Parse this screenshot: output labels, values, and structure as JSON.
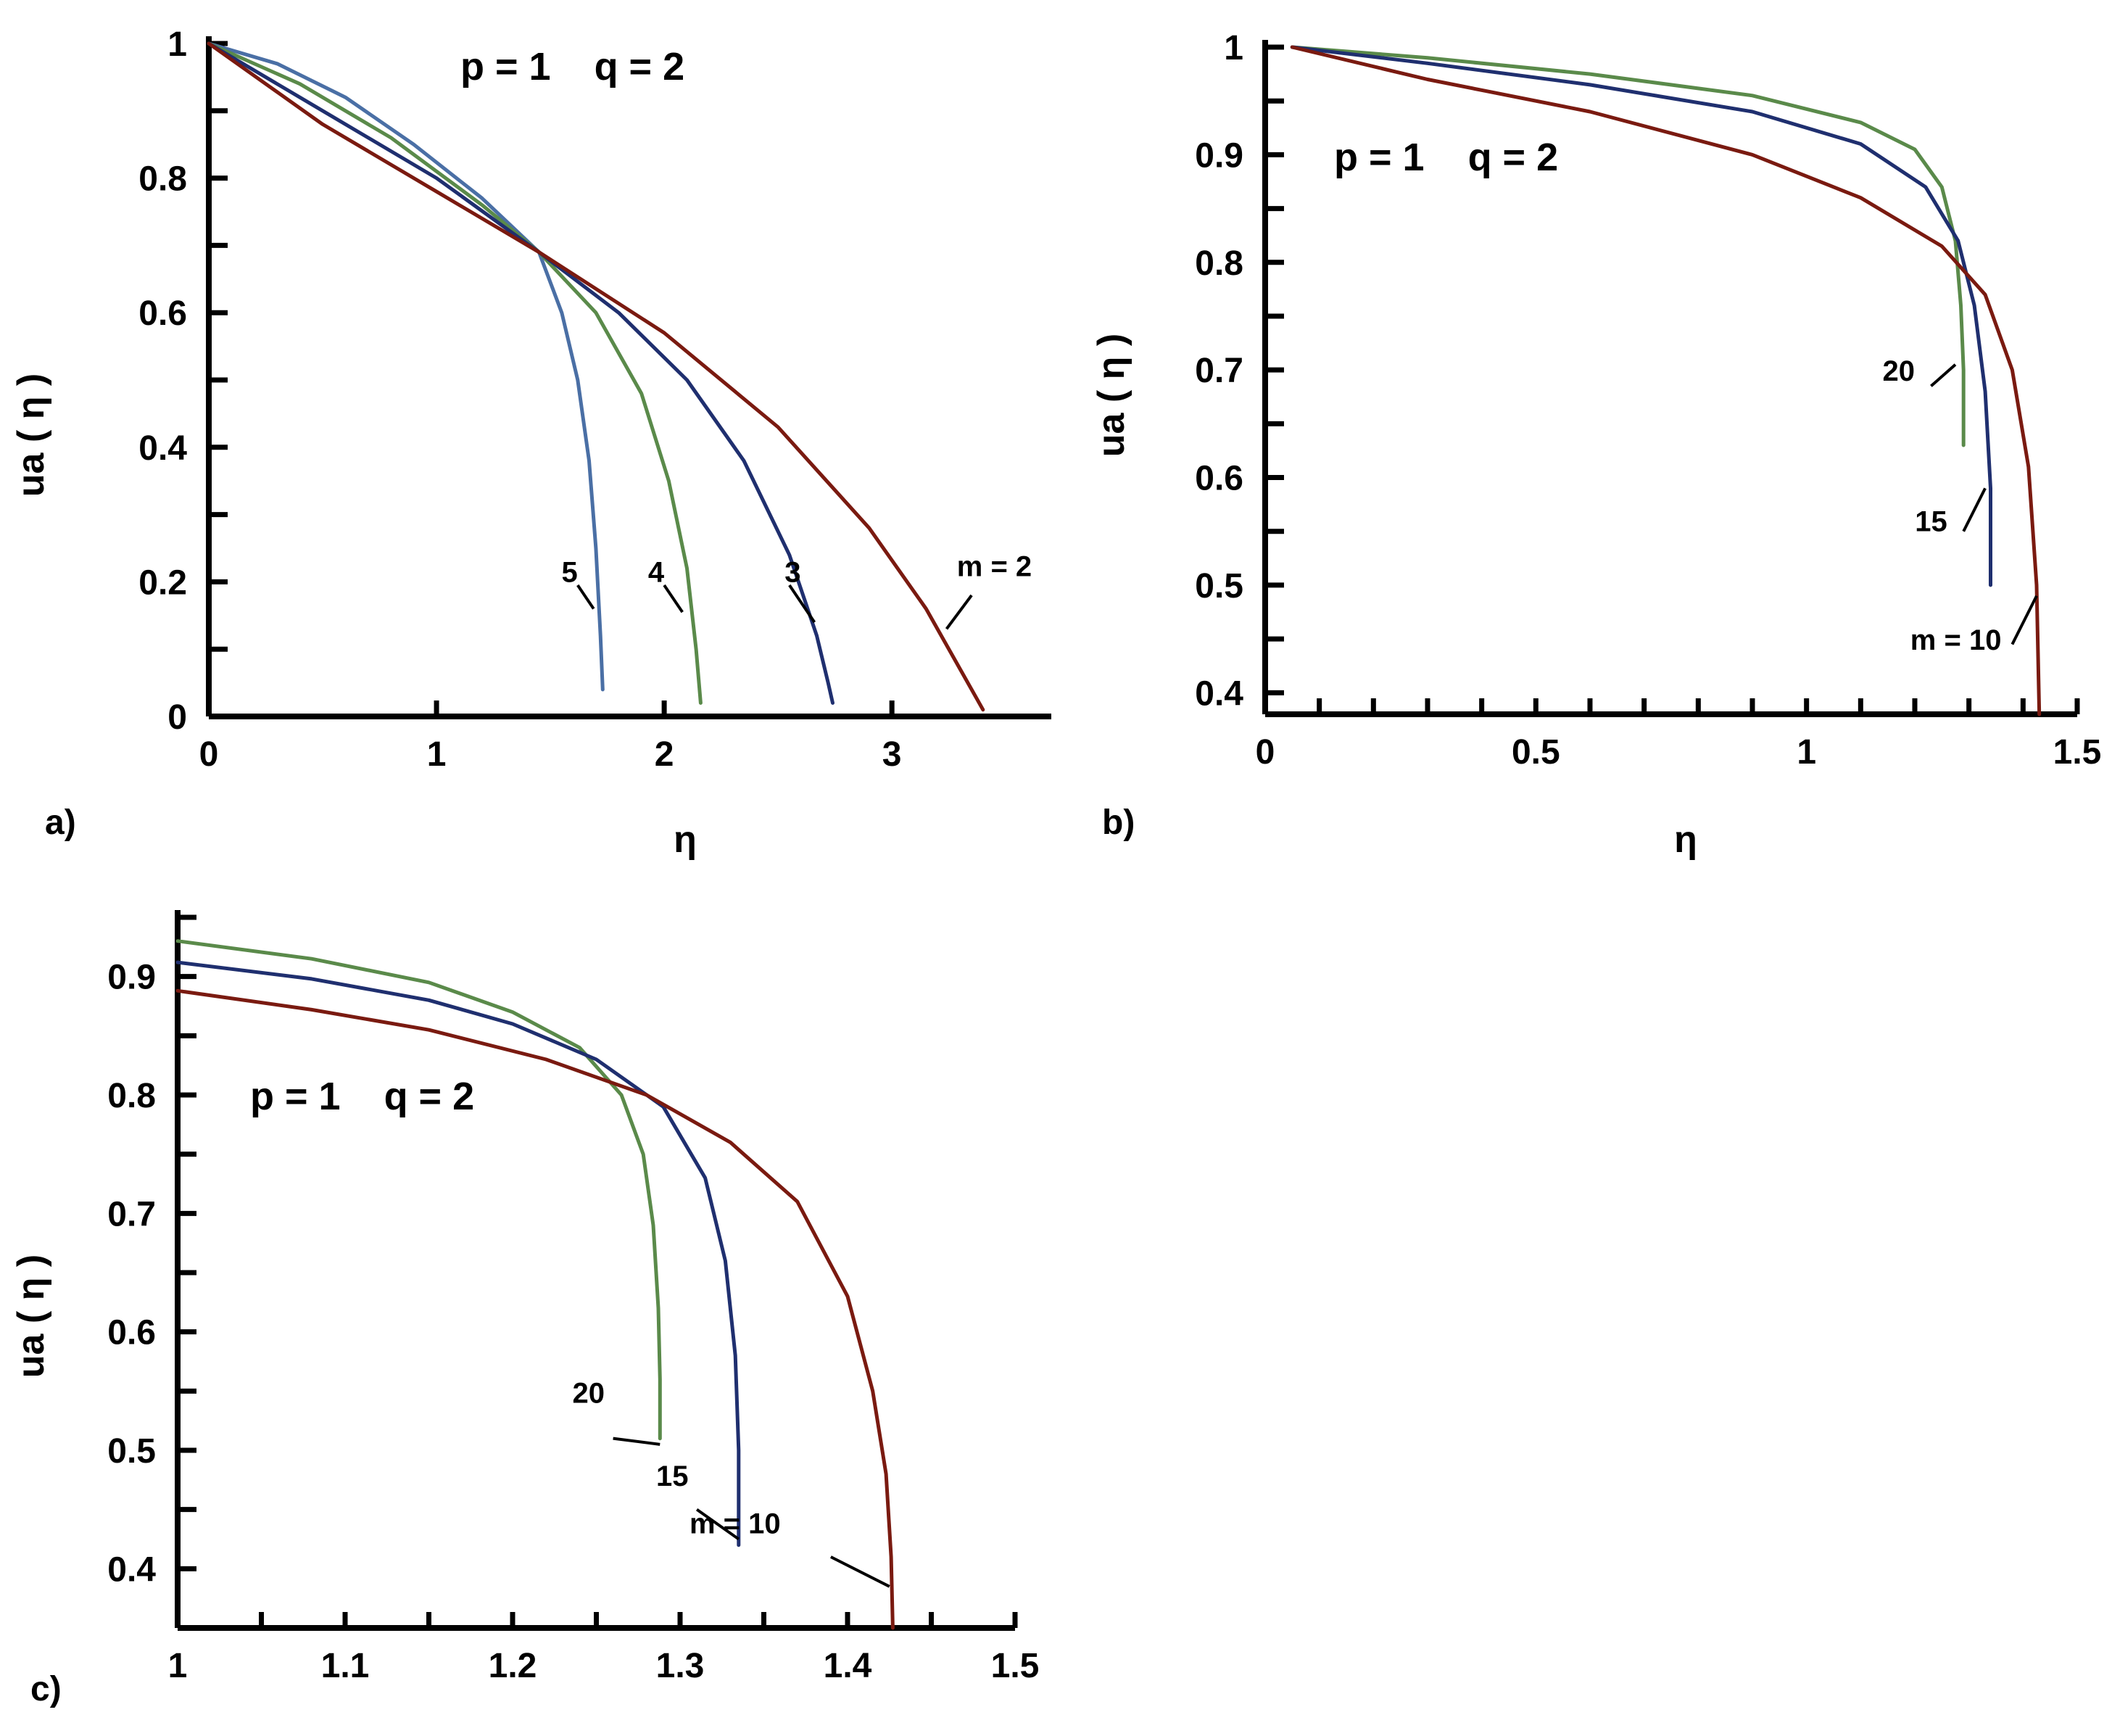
{
  "chart_data": [
    {
      "type": "line",
      "panel_label": "a)",
      "params_text": "p = 1    q = 2",
      "xlabel": "η",
      "ylabel": "ua ( η )",
      "xlim": [
        0,
        3.7
      ],
      "ylim": [
        0,
        1
      ],
      "xticks": [
        "0",
        "1",
        "2",
        "3"
      ],
      "xtick_values": [
        0,
        1,
        2,
        3
      ],
      "yticks": [
        "0",
        "0.2",
        "0.4",
        "0.6",
        "0.8",
        "1"
      ],
      "ytick_values": [
        0,
        0.2,
        0.4,
        0.6,
        0.8,
        1
      ],
      "series": [
        {
          "name": "5",
          "color": "#4a6fa5",
          "eta_max": 1.73,
          "end_y": 0.04,
          "x": [
            0,
            0.3,
            0.6,
            0.9,
            1.2,
            1.45,
            1.55,
            1.62,
            1.67,
            1.7,
            1.72,
            1.73
          ],
          "y": [
            1,
            0.97,
            0.92,
            0.85,
            0.77,
            0.69,
            0.6,
            0.5,
            0.38,
            0.25,
            0.12,
            0.04
          ],
          "label": "5",
          "label_pos": [
            1.62,
            0.2
          ]
        },
        {
          "name": "4",
          "color": "#5a8a4a",
          "eta_max": 2.16,
          "end_y": 0.02,
          "x": [
            0,
            0.4,
            0.8,
            1.2,
            1.45,
            1.7,
            1.9,
            2.02,
            2.1,
            2.14,
            2.16
          ],
          "y": [
            1,
            0.94,
            0.86,
            0.76,
            0.69,
            0.6,
            0.48,
            0.35,
            0.22,
            0.1,
            0.02
          ],
          "label": "4",
          "label_pos": [
            2.0,
            0.2
          ]
        },
        {
          "name": "3",
          "color": "#1f2f6f",
          "eta_max": 2.74,
          "end_y": 0.02,
          "x": [
            0,
            0.5,
            1.0,
            1.45,
            1.8,
            2.1,
            2.35,
            2.55,
            2.67,
            2.72,
            2.74
          ],
          "y": [
            1,
            0.9,
            0.8,
            0.69,
            0.6,
            0.5,
            0.38,
            0.24,
            0.12,
            0.05,
            0.02
          ],
          "label": "3",
          "label_pos": [
            2.6,
            0.2
          ]
        },
        {
          "name": "m = 2",
          "color": "#7a1a10",
          "eta_max": 3.4,
          "end_y": 0.01,
          "x": [
            0,
            0.5,
            1.0,
            1.45,
            2.0,
            2.5,
            2.9,
            3.15,
            3.3,
            3.4
          ],
          "y": [
            1,
            0.88,
            0.78,
            0.69,
            0.57,
            0.43,
            0.28,
            0.16,
            0.07,
            0.01
          ],
          "label": "m = 2",
          "label_pos": [
            3.45,
            0.22
          ]
        }
      ]
    },
    {
      "type": "line",
      "panel_label": "b)",
      "params_text": "p = 1    q = 2",
      "xlabel": "η",
      "ylabel": "ua ( η )",
      "xlim": [
        0,
        1.5
      ],
      "ylim": [
        0.38,
        1
      ],
      "xticks": [
        "0",
        "0.5",
        "1",
        "1.5"
      ],
      "xtick_values": [
        0,
        0.5,
        1,
        1.5
      ],
      "yticks": [
        "0.4",
        "0.5",
        "0.6",
        "0.7",
        "0.8",
        "0.9",
        "1"
      ],
      "ytick_values": [
        0.4,
        0.5,
        0.6,
        0.7,
        0.8,
        0.9,
        1
      ],
      "series": [
        {
          "name": "20",
          "color": "#5a8a4a",
          "x": [
            0.05,
            0.3,
            0.6,
            0.9,
            1.1,
            1.2,
            1.25,
            1.275,
            1.285,
            1.29,
            1.29
          ],
          "y": [
            1.0,
            0.99,
            0.975,
            0.955,
            0.93,
            0.905,
            0.87,
            0.82,
            0.76,
            0.7,
            0.63
          ],
          "label": "20",
          "label_pos": [
            1.2,
            0.69
          ]
        },
        {
          "name": "15",
          "color": "#1f2f6f",
          "x": [
            0.05,
            0.3,
            0.6,
            0.9,
            1.1,
            1.22,
            1.28,
            1.31,
            1.33,
            1.34,
            1.34
          ],
          "y": [
            1.0,
            0.985,
            0.965,
            0.94,
            0.91,
            0.87,
            0.82,
            0.76,
            0.68,
            0.59,
            0.5
          ],
          "label": "15",
          "label_pos": [
            1.26,
            0.55
          ]
        },
        {
          "name": "m = 10",
          "color": "#7a1a10",
          "x": [
            0.05,
            0.3,
            0.6,
            0.9,
            1.1,
            1.25,
            1.33,
            1.38,
            1.41,
            1.425,
            1.43
          ],
          "y": [
            1.0,
            0.97,
            0.94,
            0.9,
            0.86,
            0.815,
            0.77,
            0.7,
            0.61,
            0.5,
            0.38
          ],
          "label": "m = 10",
          "label_pos": [
            1.36,
            0.44
          ]
        }
      ]
    },
    {
      "type": "line",
      "panel_label": "c)",
      "params_text": "p = 1    q = 2",
      "xlabel": "",
      "ylabel": "ua ( η )",
      "xlim": [
        1,
        1.5
      ],
      "ylim": [
        0.35,
        0.95
      ],
      "xticks": [
        "1",
        "1.1",
        "1.2",
        "1.3",
        "1.4",
        "1.5"
      ],
      "xtick_values": [
        1,
        1.1,
        1.2,
        1.3,
        1.4,
        1.5
      ],
      "yticks": [
        "0.4",
        "0.5",
        "0.6",
        "0.7",
        "0.8",
        "0.9"
      ],
      "ytick_values": [
        0.4,
        0.5,
        0.6,
        0.7,
        0.8,
        0.9
      ],
      "series": [
        {
          "name": "20",
          "color": "#5a8a4a",
          "x": [
            1.0,
            1.08,
            1.15,
            1.2,
            1.24,
            1.265,
            1.278,
            1.284,
            1.287,
            1.288,
            1.288
          ],
          "y": [
            0.93,
            0.915,
            0.895,
            0.87,
            0.84,
            0.8,
            0.75,
            0.69,
            0.62,
            0.56,
            0.51
          ],
          "label": "20",
          "label_pos": [
            1.255,
            0.54
          ]
        },
        {
          "name": "15",
          "color": "#1f2f6f",
          "x": [
            1.0,
            1.08,
            1.15,
            1.2,
            1.25,
            1.29,
            1.315,
            1.327,
            1.333,
            1.335,
            1.335
          ],
          "y": [
            0.912,
            0.898,
            0.88,
            0.86,
            0.83,
            0.79,
            0.73,
            0.66,
            0.58,
            0.5,
            0.42
          ],
          "label": "15",
          "label_pos": [
            1.305,
            0.47
          ]
        },
        {
          "name": "m = 10",
          "color": "#7a1a10",
          "x": [
            1.0,
            1.08,
            1.15,
            1.22,
            1.28,
            1.33,
            1.37,
            1.4,
            1.415,
            1.423,
            1.426,
            1.427
          ],
          "y": [
            0.888,
            0.872,
            0.855,
            0.83,
            0.8,
            0.76,
            0.71,
            0.63,
            0.55,
            0.48,
            0.41,
            0.35
          ],
          "label": "m = 10",
          "label_pos": [
            1.36,
            0.43
          ]
        }
      ]
    }
  ]
}
